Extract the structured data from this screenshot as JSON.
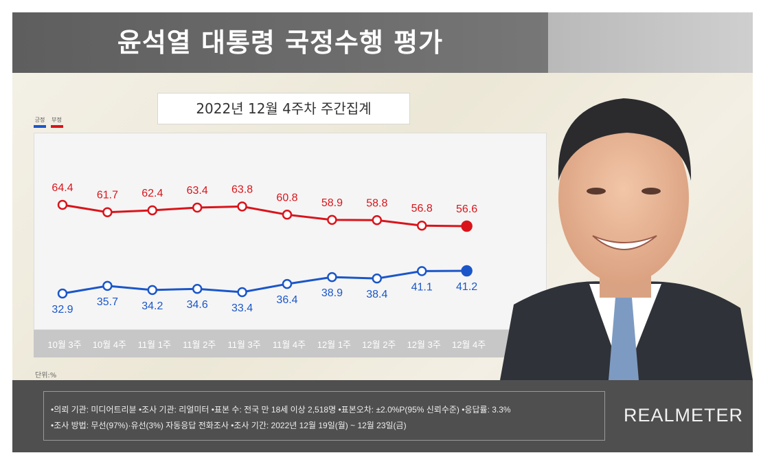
{
  "header": {
    "title": "윤석열 대통령 국정수행 평가",
    "subtitle": "2022년 12월 4주차 주간집계"
  },
  "legend": [
    {
      "label": "긍정",
      "color": "#1a56c9"
    },
    {
      "label": "부정",
      "color": "#d9141b"
    }
  ],
  "unit_label": "단위:%",
  "chart_data": {
    "type": "line",
    "categories": [
      "10월 3주",
      "10월 4주",
      "11월 1주",
      "11월 2주",
      "11월 3주",
      "11월 4주",
      "12월 1주",
      "12월 2주",
      "12월 3주",
      "12월 4주"
    ],
    "series": [
      {
        "name": "부정",
        "color": "#d9141b",
        "values": [
          64.4,
          61.7,
          62.4,
          63.4,
          63.8,
          60.8,
          58.9,
          58.8,
          56.8,
          56.6
        ]
      },
      {
        "name": "긍정",
        "color": "#1a56c9",
        "values": [
          32.9,
          35.7,
          34.2,
          34.6,
          33.4,
          36.4,
          38.9,
          38.4,
          41.1,
          41.2
        ]
      }
    ],
    "title": "",
    "xlabel": "",
    "ylabel": "",
    "grid": false,
    "legend_position": "top-left"
  },
  "footer": {
    "line1": "•의뢰 기관: 미디어트리뷴 •조사 기관: 리얼미터 •표본 수: 전국 만 18세 이상 2,518명 •표본오차: ±2.0%P(95% 신뢰수준) •응답률: 3.3%",
    "line2": "•조사 방법: 무선(97%)·유선(3%) 자동응답 전화조사 •조사 기간: 2022년 12월 19일(월) ~ 12월 23일(금)",
    "brand": "REALMETER"
  },
  "colors": {
    "negative": "#d9141b",
    "positive": "#1a56c9",
    "footer_bg": "#4f4f4f",
    "title_bg": "#666666"
  }
}
